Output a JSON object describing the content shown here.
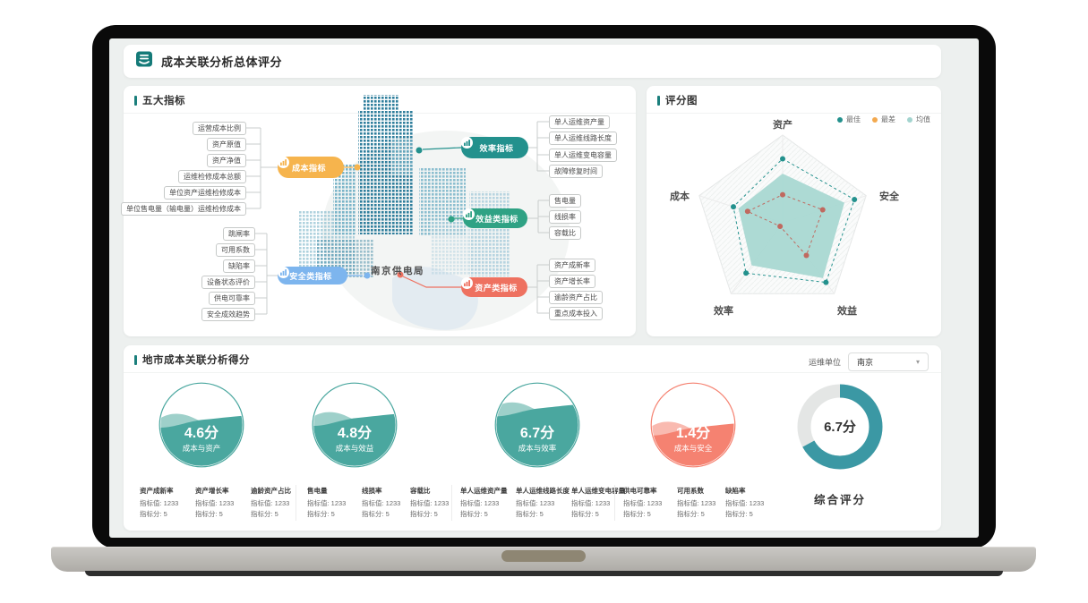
{
  "header": {
    "title": "成本关联分析总体评分"
  },
  "indicators_panel": {
    "title": "五大指标",
    "center_label": "南京供电局",
    "groups": [
      {
        "id": "cost",
        "label": "成本指标",
        "color": "#f6b44d",
        "items": [
          "运营成本比例",
          "资产原值",
          "资产净值",
          "运维检修成本总额",
          "单位资产运维检修成本",
          "单位售电量（输电量）运维检修成本"
        ]
      },
      {
        "id": "safety",
        "label": "安全类指标",
        "color": "#7db5ee",
        "items": [
          "跳闸率",
          "可用系数",
          "缺陷率",
          "设备状态评价",
          "供电可靠率",
          "安全成效趋势"
        ]
      },
      {
        "id": "efficiency",
        "label": "效率指标",
        "color": "#23918d",
        "items": [
          "单人运维资产量",
          "单人运维线路长度",
          "单人运维变电容量",
          "故障修复时间"
        ]
      },
      {
        "id": "benefit",
        "label": "效益类指标",
        "color": "#2fa284",
        "items": [
          "售电量",
          "线损率",
          "容载比"
        ]
      },
      {
        "id": "asset",
        "label": "资产类指标",
        "color": "#ee7160",
        "items": [
          "资产成新率",
          "资产增长率",
          "逾龄资产占比",
          "重点成本投入"
        ]
      }
    ]
  },
  "score_panel": {
    "title": "评分图"
  },
  "chart_data": [
    {
      "type": "radar",
      "title": "评分图",
      "axes": [
        "资产",
        "安全",
        "效益",
        "效率",
        "成本"
      ],
      "max": 10,
      "legend": [
        {
          "name": "最佳",
          "color": "#23918d"
        },
        {
          "name": "最差",
          "color": "#f3a94f"
        },
        {
          "name": "均值",
          "color": "#a3d4cf"
        }
      ],
      "series": [
        {
          "name": "均值",
          "values": [
            5.6,
            7.4,
            7.8,
            6.0,
            5.3
          ],
          "color": "#a9d8d2",
          "style": "filled"
        },
        {
          "name": "最佳",
          "values": [
            7.3,
            8.6,
            8.4,
            7.1,
            5.9
          ],
          "color": "#23918d",
          "style": "dashed"
        },
        {
          "name": "最差",
          "values": [
            3.2,
            4.8,
            4.6,
            0.5,
            4.2
          ],
          "color": "#c0695f",
          "style": "dashed"
        }
      ],
      "legend_position": "top-right"
    },
    {
      "type": "gauge",
      "title": "成本与资产",
      "value": 4.6,
      "max": 10,
      "display": "4.6分",
      "fill_percent": 53,
      "color": "#4aa79f",
      "wave_light": "#93cbc4"
    },
    {
      "type": "gauge",
      "title": "成本与效益",
      "value": 4.8,
      "max": 10,
      "display": "4.8分",
      "fill_percent": 55,
      "color": "#4aa79f",
      "wave_light": "#93cbc4"
    },
    {
      "type": "gauge",
      "title": "成本与效率",
      "value": 6.7,
      "max": 10,
      "display": "6.7分",
      "fill_percent": 66,
      "color": "#4aa79f",
      "wave_light": "#93cbc4"
    },
    {
      "type": "gauge",
      "title": "成本与安全",
      "value": 1.4,
      "max": 10,
      "display": "1.4分",
      "fill_percent": 44,
      "color": "#f58271",
      "wave_light": "#f8b3a7"
    },
    {
      "type": "donut",
      "title": "综合评分",
      "value": 6.7,
      "max": 10,
      "display": "6.7分",
      "percent": 67,
      "color": "#3b98a4",
      "track": "#e4e6e5"
    }
  ],
  "city_panel": {
    "title": "地市成本关联分析得分",
    "unit_label": "运维单位",
    "unit_value": "南京",
    "stat_value_label": "指标值",
    "stat_score_label": "指标分",
    "stat_groups": [
      [
        {
          "name": "资产成新率",
          "value": 1233,
          "score": 5
        },
        {
          "name": "资产增长率",
          "value": 1233,
          "score": 5
        },
        {
          "name": "逾龄资产占比",
          "value": 1233,
          "score": 5
        }
      ],
      [
        {
          "name": "售电量",
          "value": 1233,
          "score": 5
        },
        {
          "name": "线损率",
          "value": 1233,
          "score": 5
        },
        {
          "name": "容载比",
          "value": 1233,
          "score": 5
        }
      ],
      [
        {
          "name": "单人运维资产量",
          "value": 1233,
          "score": 5
        },
        {
          "name": "单人运维线路长度",
          "value": 1233,
          "score": 5
        },
        {
          "name": "单人运维变电容量",
          "value": 1233,
          "score": 5
        }
      ],
      [
        {
          "name": "供电可靠率",
          "value": 1233,
          "score": 5
        },
        {
          "name": "可用系数",
          "value": 1233,
          "score": 5
        },
        {
          "name": "缺陷率",
          "value": 1233,
          "score": 5
        }
      ]
    ]
  }
}
